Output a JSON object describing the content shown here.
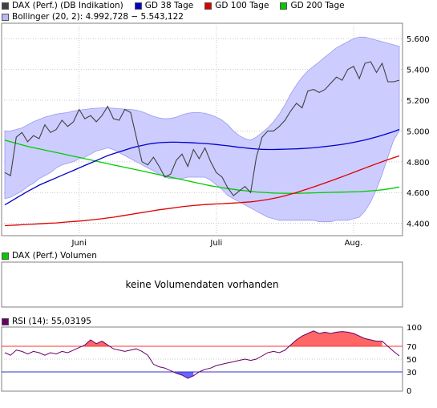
{
  "legend": {
    "row1": [
      {
        "label": "DAX (Perf.) (DB Indikation)",
        "color": "#404040"
      },
      {
        "label": "GD 38 Tage",
        "color": "#0000cc"
      },
      {
        "label": "GD 100 Tage",
        "color": "#dd0000"
      },
      {
        "label": "GD 200 Tage",
        "color": "#00cc00"
      }
    ],
    "bollinger": {
      "label": "Bollinger (20, 2): 4.992,728 − 5.543,122",
      "color": "#b8b8ff"
    },
    "volume": {
      "label": "DAX (Perf.) Volumen",
      "color": "#00cc00"
    },
    "rsi": {
      "label": "RSI (14): 55,03195",
      "color": "#660066"
    }
  },
  "volume_message": "keine Volumendaten vorhanden",
  "chart_data": [
    {
      "type": "line",
      "name": "price-panel",
      "x_tick_labels": [
        "Juni",
        "Juli",
        "Aug."
      ],
      "y_ticks": [
        "4.400",
        "4.600",
        "4.800",
        "5.000",
        "5.200",
        "5.400",
        "5.600"
      ],
      "ylim": [
        4320,
        5700
      ],
      "n": 70,
      "x_tick_index": [
        13,
        37,
        61
      ],
      "series": [
        {
          "name": "DAX (Perf.) (DB Indikation)",
          "color": "#404040",
          "values": [
            4730,
            4710,
            4960,
            4990,
            4930,
            4970,
            4950,
            5040,
            4990,
            5010,
            5070,
            5030,
            5060,
            5140,
            5080,
            5100,
            5060,
            5100,
            5160,
            5080,
            5070,
            5140,
            5120,
            4960,
            4800,
            4780,
            4830,
            4770,
            4700,
            4720,
            4810,
            4850,
            4770,
            4880,
            4820,
            4890,
            4800,
            4730,
            4700,
            4630,
            4580,
            4610,
            4640,
            4600,
            4830,
            4960,
            5000,
            5000,
            5030,
            5070,
            5130,
            5180,
            5150,
            5260,
            5270,
            5250,
            5270,
            5310,
            5350,
            5330,
            5400,
            5420,
            5340,
            5440,
            5450,
            5380,
            5440,
            5320,
            5320,
            5330
          ]
        },
        {
          "name": "GD 38 Tage",
          "color": "#0000cc",
          "values": [
            4520,
            4542,
            4564,
            4586,
            4608,
            4628,
            4648,
            4664,
            4680,
            4696,
            4712,
            4728,
            4744,
            4760,
            4776,
            4792,
            4808,
            4824,
            4840,
            4852,
            4864,
            4876,
            4888,
            4898,
            4906,
            4914,
            4920,
            4924,
            4926,
            4927,
            4927,
            4926,
            4925,
            4923,
            4921,
            4919,
            4916,
            4912,
            4908,
            4904,
            4899,
            4894,
            4890,
            4886,
            4883,
            4881,
            4880,
            4880,
            4881,
            4882,
            4883,
            4884,
            4886,
            4888,
            4891,
            4895,
            4899,
            4903,
            4908,
            4913,
            4919,
            4926,
            4934,
            4942,
            4951,
            4961,
            4972,
            4984,
            4996,
            5010
          ]
        },
        {
          "name": "GD 100 Tage",
          "color": "#dd0000",
          "values": [
            4385,
            4387,
            4389,
            4391,
            4393,
            4395,
            4397,
            4399,
            4401,
            4403,
            4406,
            4409,
            4412,
            4415,
            4418,
            4422,
            4426,
            4430,
            4435,
            4440,
            4446,
            4452,
            4458,
            4464,
            4470,
            4476,
            4482,
            4488,
            4493,
            4498,
            4503,
            4508,
            4512,
            4516,
            4519,
            4522,
            4524,
            4526,
            4528,
            4530,
            4532,
            4534,
            4537,
            4540,
            4544,
            4549,
            4555,
            4562,
            4570,
            4579,
            4589,
            4600,
            4612,
            4624,
            4636,
            4649,
            4662,
            4675,
            4689,
            4703,
            4717,
            4731,
            4745,
            4759,
            4773,
            4787,
            4800,
            4813,
            4826,
            4838
          ]
        },
        {
          "name": "GD 200 Tage",
          "color": "#00cc00",
          "values": [
            4940,
            4930,
            4920,
            4910,
            4900,
            4892,
            4884,
            4876,
            4868,
            4860,
            4852,
            4844,
            4836,
            4828,
            4820,
            4812,
            4804,
            4796,
            4788,
            4780,
            4772,
            4764,
            4756,
            4748,
            4740,
            4732,
            4724,
            4716,
            4708,
            4700,
            4692,
            4684,
            4676,
            4668,
            4660,
            4652,
            4644,
            4638,
            4632,
            4626,
            4621,
            4616,
            4612,
            4608,
            4604,
            4601,
            4599,
            4597,
            4596,
            4595,
            4595,
            4595,
            4596,
            4597,
            4598,
            4599,
            4600,
            4601,
            4602,
            4603,
            4604,
            4605,
            4606,
            4608,
            4611,
            4614,
            4618,
            4623,
            4629,
            4636
          ]
        }
      ],
      "bollinger_upper": [
        5000,
        5000,
        5010,
        5020,
        5040,
        5060,
        5075,
        5090,
        5100,
        5110,
        5115,
        5120,
        5130,
        5135,
        5140,
        5145,
        5148,
        5150,
        5150,
        5148,
        5145,
        5142,
        5140,
        5135,
        5125,
        5110,
        5095,
        5085,
        5080,
        5082,
        5090,
        5105,
        5115,
        5120,
        5120,
        5115,
        5105,
        5090,
        5070,
        5040,
        5000,
        4970,
        4950,
        4940,
        4960,
        4990,
        5020,
        5060,
        5110,
        5170,
        5240,
        5300,
        5350,
        5390,
        5420,
        5450,
        5480,
        5510,
        5540,
        5560,
        5580,
        5600,
        5610,
        5610,
        5600,
        5590,
        5580,
        5570,
        5560,
        5550
      ],
      "bollinger_lower": [
        4560,
        4570,
        4590,
        4610,
        4640,
        4660,
        4690,
        4710,
        4730,
        4760,
        4780,
        4790,
        4800,
        4820,
        4830,
        4850,
        4870,
        4880,
        4890,
        4880,
        4860,
        4840,
        4820,
        4800,
        4780,
        4760,
        4740,
        4720,
        4700,
        4690,
        4690,
        4690,
        4700,
        4700,
        4700,
        4700,
        4680,
        4650,
        4620,
        4580,
        4560,
        4540,
        4520,
        4500,
        4480,
        4460,
        4440,
        4430,
        4420,
        4420,
        4420,
        4420,
        4420,
        4420,
        4420,
        4410,
        4410,
        4410,
        4420,
        4420,
        4420,
        4430,
        4440,
        4480,
        4540,
        4620,
        4720,
        4830,
        4940,
        5000
      ]
    },
    {
      "type": "line",
      "name": "rsi-panel",
      "y_ticks": [
        "0",
        "30",
        "50",
        "70",
        "100"
      ],
      "ylim": [
        0,
        100
      ],
      "levels": [
        30,
        70
      ],
      "n": 70,
      "series": [
        {
          "name": "RSI (14)",
          "color": "#660066",
          "values": [
            60,
            56,
            64,
            62,
            58,
            62,
            60,
            56,
            60,
            58,
            62,
            60,
            64,
            68,
            72,
            80,
            74,
            78,
            72,
            66,
            64,
            62,
            64,
            66,
            62,
            56,
            42,
            38,
            36,
            32,
            28,
            25,
            20,
            24,
            30,
            34,
            36,
            40,
            42,
            44,
            46,
            48,
            50,
            48,
            50,
            55,
            60,
            62,
            60,
            64,
            72,
            80,
            86,
            90,
            94,
            90,
            92,
            90,
            92,
            93,
            92,
            90,
            86,
            82,
            80,
            78,
            78,
            70,
            62,
            55
          ]
        }
      ]
    }
  ]
}
